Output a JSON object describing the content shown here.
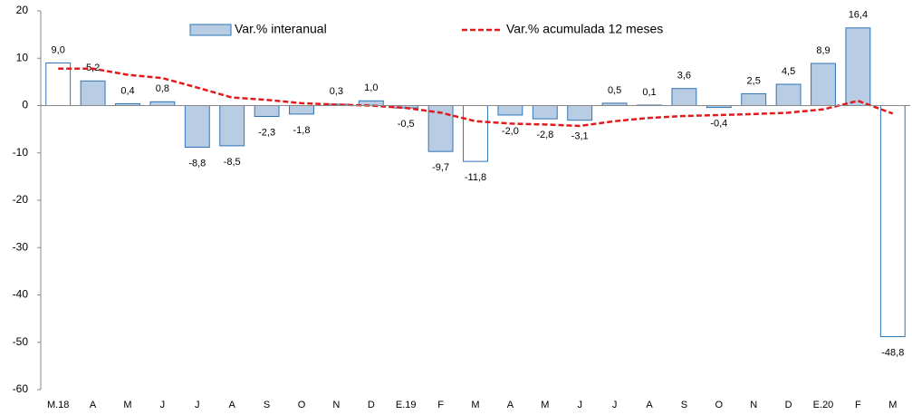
{
  "chart_data": {
    "type": "bar-line",
    "categories": [
      "M.18",
      "A",
      "M",
      "J",
      "J",
      "A",
      "S",
      "O",
      "N",
      "D",
      "E.19",
      "F",
      "M",
      "A",
      "M",
      "J",
      "J",
      "A",
      "S",
      "O",
      "N",
      "D",
      "E.20",
      "F",
      "M"
    ],
    "series": [
      {
        "name": "Var.% interanual",
        "type": "bar",
        "color": "#b8cce4",
        "edge_color": "#2e75b6",
        "bar_colors": [
          "#ffffff",
          "#b8cce4",
          "#b8cce4",
          "#b8cce4",
          "#b8cce4",
          "#b8cce4",
          "#b8cce4",
          "#b8cce4",
          "#b8cce4",
          "#b8cce4",
          "#b8cce4",
          "#b8cce4",
          "#ffffff",
          "#b8cce4",
          "#b8cce4",
          "#b8cce4",
          "#b8cce4",
          "#b8cce4",
          "#b8cce4",
          "#b8cce4",
          "#b8cce4",
          "#b8cce4",
          "#b8cce4",
          "#b8cce4",
          "#ffffff"
        ],
        "values": [
          9.0,
          5.2,
          0.4,
          0.8,
          -8.8,
          -8.5,
          -2.3,
          -1.8,
          0.3,
          1.0,
          -0.5,
          -9.7,
          -11.8,
          -2.0,
          -2.8,
          -3.1,
          0.5,
          0.1,
          3.6,
          -0.4,
          2.5,
          4.5,
          8.9,
          16.4,
          -48.8
        ],
        "value_labels": [
          "9,0",
          "5,2",
          "0,4",
          "0,8",
          "-8,8",
          "-8,5",
          "-2,3",
          "-1,8",
          "0,3",
          "1,0",
          "-0,5",
          "-9,7",
          "-11,8",
          "-2,0",
          "-2,8",
          "-3,1",
          "0,5",
          "0,1",
          "3,6",
          "-0,4",
          "2,5",
          "4,5",
          "8,9",
          "16,4",
          "-48,8"
        ]
      },
      {
        "name": "Var.% acumulada 12 meses",
        "type": "line",
        "color": "#e31a1c",
        "dashed": true,
        "values": [
          7.8,
          7.8,
          6.5,
          5.8,
          3.8,
          1.7,
          1.2,
          0.5,
          0.2,
          0.0,
          -0.5,
          -1.5,
          -3.3,
          -3.8,
          -4.0,
          -4.3,
          -3.3,
          -2.6,
          -2.2,
          -2.0,
          -1.8,
          -1.5,
          -0.8,
          1.0,
          -1.7
        ]
      }
    ],
    "ylim": [
      -60,
      20
    ],
    "yticks": [
      -60,
      -50,
      -40,
      -30,
      -20,
      -10,
      0,
      10,
      20
    ],
    "grid": false
  }
}
